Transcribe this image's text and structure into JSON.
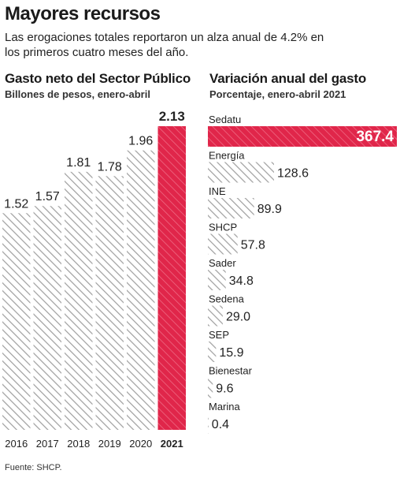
{
  "title": "Mayores recursos",
  "subtitle": "Las erogaciones totales reportaron un alza anual de 4.2% en los primeros cuatro meses del año.",
  "source": "Fuente: SHCP.",
  "colors": {
    "highlight": "#e0264a",
    "hatch": "#9e9e9e",
    "text": "#222222"
  },
  "chart_data": [
    {
      "type": "bar",
      "title": "Gasto neto del Sector Público",
      "subtitle": "Billones de pesos, enero-abril",
      "categories": [
        "2016",
        "2017",
        "2018",
        "2019",
        "2020",
        "2021"
      ],
      "values": [
        1.52,
        1.57,
        1.81,
        1.78,
        1.96,
        2.13
      ],
      "value_labels": [
        "1.52",
        "1.57",
        "1.81",
        "1.78",
        "1.96",
        "2.13"
      ],
      "highlight": "2021",
      "ylim": [
        0,
        2.13
      ]
    },
    {
      "type": "bar",
      "orientation": "horizontal",
      "title": "Variación anual del gasto",
      "subtitle": "Porcentaje, enero-abril 2021",
      "categories": [
        "Sedatu",
        "Energía",
        "INE",
        "SHCP",
        "Sader",
        "Sedena",
        "SEP",
        "Bienestar",
        "Marina"
      ],
      "values": [
        367.4,
        128.6,
        89.9,
        57.8,
        34.8,
        29.0,
        15.9,
        9.6,
        0.4
      ],
      "value_labels": [
        "367.4",
        "128.6",
        "89.9",
        "57.8",
        "34.8",
        "29.0",
        "15.9",
        "9.6",
        "0.4"
      ],
      "highlight": "Sedatu",
      "xlim": [
        0,
        367.4
      ]
    }
  ]
}
